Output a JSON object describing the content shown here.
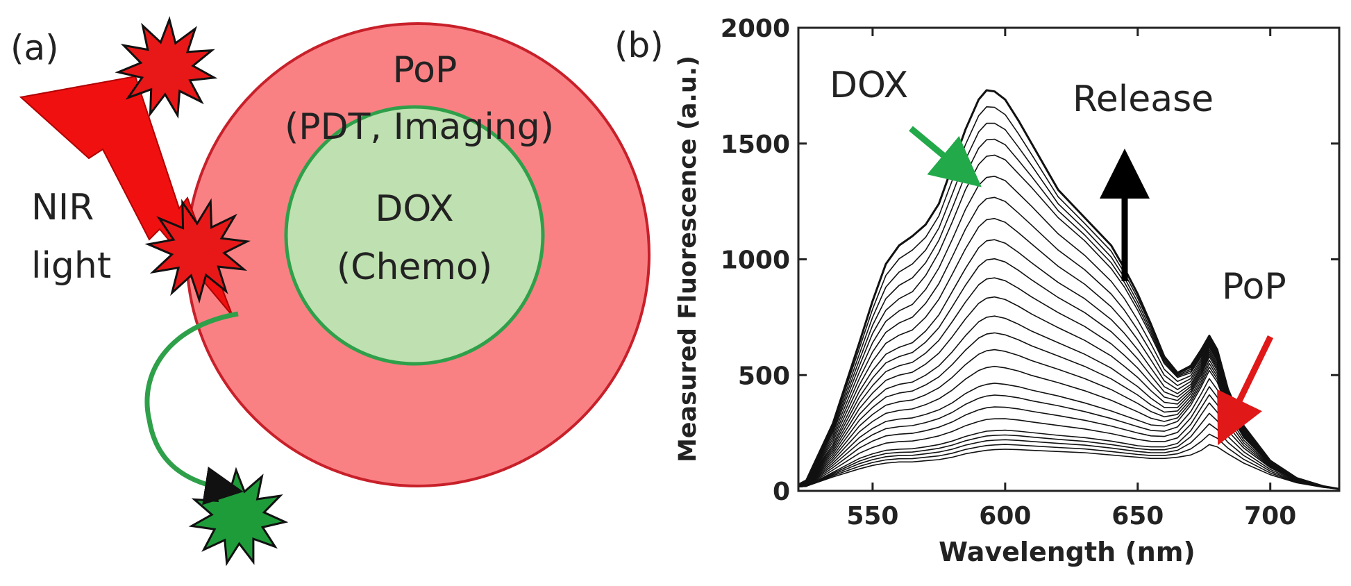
{
  "panel_a": {
    "label": "(a)",
    "outer_title": "PoP",
    "outer_subtitle": "(PDT, Imaging)",
    "inner_title": "DOX",
    "inner_subtitle": "(Chemo)",
    "light_label_1": "NIR",
    "light_label_2": "light",
    "colors": {
      "outer": "#f98184",
      "outer_stroke": "#c8202a",
      "inner": "#bfe0b0",
      "inner_stroke": "#2fa04a",
      "bolt": "#f01010",
      "burst_red": "#e81818",
      "burst_green": "#1e9c3a"
    }
  },
  "panel_b": {
    "label": "(b)",
    "annot_dox": "DOX",
    "annot_release": "Release",
    "annot_pop": "PoP",
    "colors": {
      "dox_arrow": "#22a94a",
      "pop_arrow": "#e01818",
      "release_arrow": "#000000"
    }
  },
  "chart_data": {
    "type": "line",
    "xlabel": "Wavelength (nm)",
    "ylabel": "Measured Fluorescence (a.u.)",
    "xlim": [
      522,
      726
    ],
    "ylim": [
      0,
      2000
    ],
    "xticks": [
      550,
      600,
      650,
      700
    ],
    "yticks": [
      0,
      500,
      1000,
      1500,
      2000
    ],
    "x": [
      520,
      525,
      535,
      545,
      550,
      555,
      560,
      565,
      570,
      575,
      580,
      585,
      590,
      593,
      596,
      600,
      605,
      610,
      620,
      630,
      640,
      645,
      650,
      655,
      660,
      665,
      670,
      674,
      677,
      680,
      684,
      690,
      700,
      710,
      720,
      726
    ],
    "series": [
      {
        "values": [
          15,
          20,
          60,
          95,
          110,
          120,
          125,
          125,
          130,
          135,
          145,
          160,
          170,
          175,
          178,
          180,
          178,
          175,
          170,
          165,
          155,
          150,
          145,
          140,
          140,
          145,
          155,
          175,
          200,
          190,
          160,
          120,
          70,
          35,
          15,
          8
        ]
      },
      {
        "values": [
          15,
          20,
          80,
          140,
          160,
          175,
          180,
          182,
          190,
          200,
          215,
          235,
          250,
          258,
          260,
          262,
          258,
          252,
          240,
          230,
          215,
          205,
          195,
          190,
          190,
          205,
          260,
          330,
          380,
          340,
          260,
          185,
          100,
          45,
          18,
          8
        ]
      },
      {
        "values": [
          15,
          25,
          120,
          230,
          270,
          300,
          310,
          315,
          330,
          350,
          380,
          420,
          450,
          460,
          465,
          460,
          450,
          435,
          410,
          380,
          345,
          325,
          305,
          285,
          280,
          300,
          370,
          450,
          520,
          470,
          350,
          230,
          115,
          50,
          20,
          8
        ]
      },
      {
        "values": [
          15,
          30,
          160,
          330,
          390,
          440,
          460,
          470,
          500,
          540,
          600,
          670,
          730,
          750,
          755,
          745,
          720,
          690,
          640,
          590,
          530,
          490,
          450,
          400,
          360,
          360,
          420,
          500,
          580,
          520,
          390,
          250,
          120,
          52,
          20,
          8
        ]
      },
      {
        "values": [
          15,
          35,
          200,
          430,
          520,
          590,
          620,
          640,
          690,
          760,
          860,
          960,
          1050,
          1080,
          1085,
          1070,
          1030,
          985,
          900,
          830,
          740,
          680,
          610,
          530,
          450,
          420,
          460,
          540,
          620,
          560,
          410,
          265,
          125,
          53,
          20,
          8
        ]
      },
      {
        "values": [
          15,
          40,
          250,
          540,
          680,
          780,
          830,
          860,
          930,
          1030,
          1160,
          1300,
          1410,
          1445,
          1450,
          1430,
          1370,
          1310,
          1180,
          1080,
          960,
          880,
          780,
          670,
          550,
          490,
          510,
          580,
          650,
          590,
          430,
          275,
          128,
          54,
          20,
          8
        ]
      },
      {
        "values": [
          15,
          45,
          290,
          640,
          820,
          980,
          1060,
          1100,
          1150,
          1240,
          1400,
          1560,
          1690,
          1730,
          1725,
          1690,
          1600,
          1500,
          1300,
          1180,
          1060,
          960,
          850,
          720,
          580,
          510,
          540,
          610,
          670,
          610,
          440,
          280,
          130,
          55,
          20,
          8
        ]
      }
    ]
  }
}
